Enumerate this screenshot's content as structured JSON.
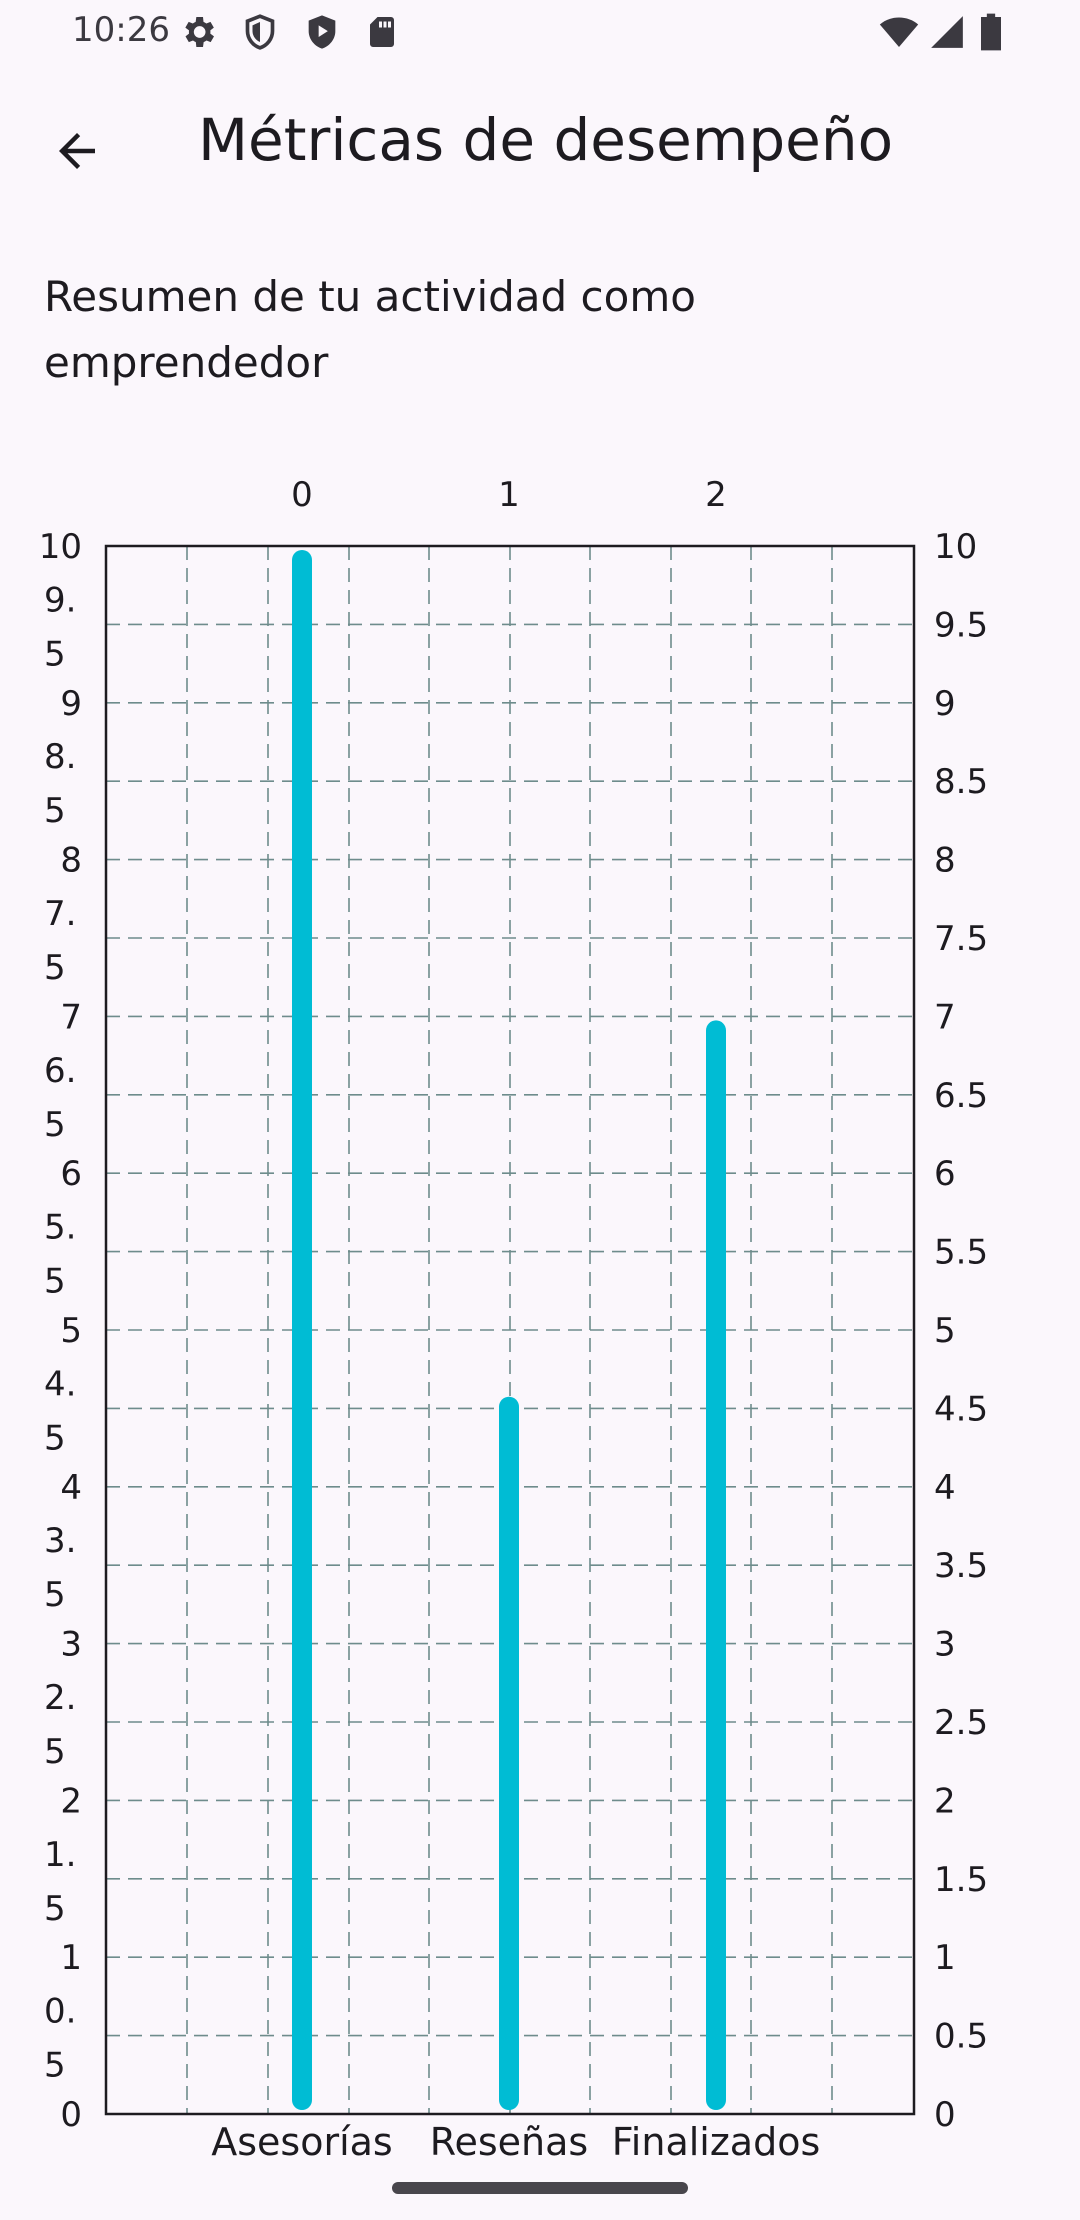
{
  "status_bar": {
    "time": "10:26",
    "icons": [
      "settings-icon",
      "shield-icon",
      "play-shield-icon",
      "sd-card-icon",
      "wifi-icon",
      "cell-signal-icon",
      "battery-icon"
    ]
  },
  "app_bar": {
    "title": "Métricas de desempeño",
    "back_icon": "arrow-back-icon"
  },
  "summary": "Resumen de tu actividad como emprendedor",
  "chart_data": {
    "type": "bar",
    "categories": [
      "Asesorías",
      "Reseñas",
      "Finalizados"
    ],
    "top_axis_labels": [
      "0",
      "1",
      "2"
    ],
    "values": [
      10,
      4.6,
      7
    ],
    "ylim": [
      0,
      10
    ],
    "y_ticks": [
      "0",
      "0.5",
      "1",
      "1.5",
      "2",
      "2.5",
      "3",
      "3.5",
      "4",
      "4.5",
      "5",
      "5.5",
      "6",
      "6.5",
      "7",
      "7.5",
      "8",
      "8.5",
      "9",
      "9.5",
      "10"
    ],
    "left_axis_tick_lines": [
      [
        "0"
      ],
      [
        "0.",
        "5"
      ],
      [
        "1"
      ],
      [
        "1.",
        "5"
      ],
      [
        "2"
      ],
      [
        "2.",
        "5"
      ],
      [
        "3"
      ],
      [
        "3.",
        "5"
      ],
      [
        "4"
      ],
      [
        "4.",
        "5"
      ],
      [
        "5"
      ],
      [
        "5.",
        "5"
      ],
      [
        "6"
      ],
      [
        "6.",
        "5"
      ],
      [
        "7"
      ],
      [
        "7.",
        "5"
      ],
      [
        "8"
      ],
      [
        "8.",
        "5"
      ],
      [
        "9"
      ],
      [
        "9.",
        "5"
      ],
      [
        "10"
      ]
    ],
    "grid": true,
    "bar_color": "#00BCD4",
    "grid_color": "#6E8C8C"
  }
}
